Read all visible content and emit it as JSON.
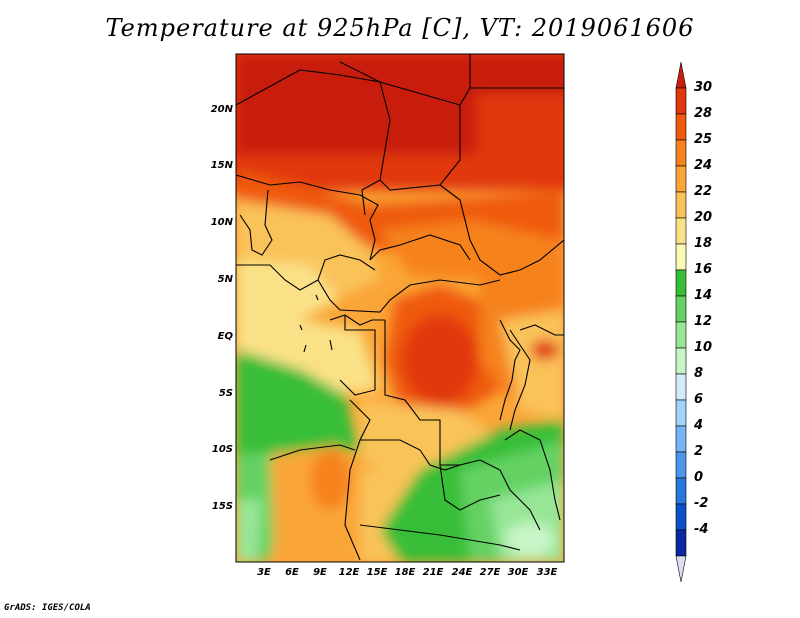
{
  "title": "Temperature at 925hPa [C], VT: 2019061606",
  "credit": "GrADS: IGES/COLA",
  "lat_labels": [
    "20N",
    "15N",
    "10N",
    "5N",
    "EQ",
    "5S",
    "10S",
    "15S"
  ],
  "lon_labels": [
    "3E",
    "6E",
    "9E",
    "12E",
    "15E",
    "18E",
    "21E",
    "24E",
    "27E",
    "30E",
    "33E"
  ],
  "colorbar": {
    "labels": [
      "30",
      "28",
      "25",
      "24",
      "22",
      "20",
      "18",
      "16",
      "14",
      "12",
      "10",
      "8",
      "6",
      "4",
      "2",
      "0",
      "-2",
      "-4"
    ],
    "colors": [
      "#c81e0f",
      "#e1370f",
      "#ef5a0f",
      "#f6821e",
      "#faa537",
      "#fac35a",
      "#fae187",
      "#fafab4",
      "#37be37",
      "#64d264",
      "#96e696",
      "#c8f5c8",
      "#d2ebfa",
      "#a0d2fa",
      "#78b4f5",
      "#4b96eb",
      "#2878dc",
      "#0a50c8",
      "#0a28a0",
      "#0f0a64"
    ]
  }
}
